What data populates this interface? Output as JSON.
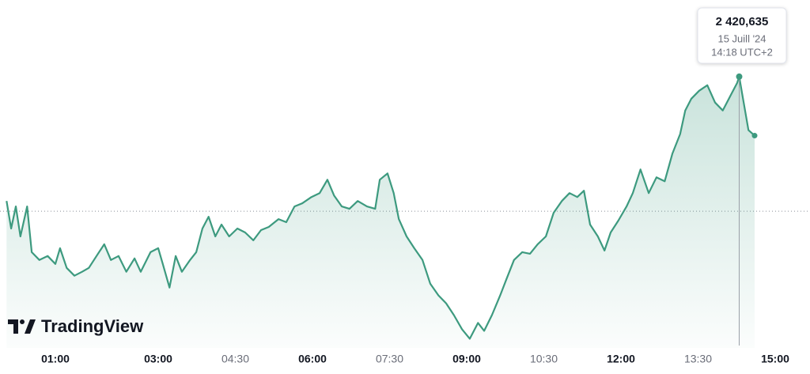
{
  "chart_data": {
    "type": "area",
    "brand": "TradingView",
    "color": "#3d9a7f",
    "x": [
      0.05,
      0.14,
      0.23,
      0.32,
      0.45,
      0.54,
      0.69,
      0.85,
      1.0,
      1.09,
      1.22,
      1.37,
      1.52,
      1.65,
      1.8,
      1.95,
      2.08,
      2.23,
      2.38,
      2.54,
      2.66,
      2.85,
      3.0,
      3.09,
      3.22,
      3.34,
      3.46,
      3.62,
      3.74,
      3.86,
      3.98,
      4.11,
      4.23,
      4.38,
      4.54,
      4.69,
      4.85,
      5.0,
      5.15,
      5.34,
      5.49,
      5.65,
      5.8,
      5.98,
      6.14,
      6.29,
      6.42,
      6.57,
      6.72,
      6.88,
      7.06,
      7.22,
      7.31,
      7.46,
      7.58,
      7.68,
      7.83,
      7.98,
      8.14,
      8.29,
      8.45,
      8.6,
      8.75,
      8.91,
      9.06,
      9.22,
      9.34,
      9.49,
      9.65,
      9.77,
      9.92,
      10.08,
      10.23,
      10.38,
      10.54,
      10.69,
      10.85,
      11.0,
      11.15,
      11.28,
      11.4,
      11.55,
      11.68,
      11.8,
      11.95,
      12.11,
      12.23,
      12.38,
      12.54,
      12.69,
      12.85,
      13.0,
      13.15,
      13.25,
      13.37,
      13.52,
      13.68,
      13.83,
      13.98,
      14.14,
      14.26,
      14.3,
      14.48,
      14.6
    ],
    "values": [
      2412.735,
      2410.985,
      2412.385,
      2410.485,
      2412.385,
      2409.485,
      2408.985,
      2409.235,
      2408.735,
      2409.735,
      2408.485,
      2407.985,
      2408.235,
      2408.485,
      2409.235,
      2409.985,
      2408.985,
      2409.235,
      2408.235,
      2409.085,
      2408.235,
      2409.485,
      2409.735,
      2408.735,
      2407.235,
      2409.235,
      2408.235,
      2408.985,
      2409.485,
      2410.985,
      2411.735,
      2410.485,
      2411.235,
      2410.485,
      2410.985,
      2410.735,
      2410.235,
      2410.885,
      2411.085,
      2411.585,
      2411.385,
      2412.385,
      2412.585,
      2412.985,
      2413.235,
      2414.085,
      2413.085,
      2412.385,
      2412.235,
      2412.735,
      2412.385,
      2412.235,
      2414.085,
      2414.485,
      2413.235,
      2411.585,
      2410.485,
      2409.735,
      2408.985,
      2407.485,
      2406.735,
      2406.235,
      2405.485,
      2404.585,
      2403.985,
      2404.985,
      2404.485,
      2405.485,
      2406.735,
      2407.735,
      2408.985,
      2409.485,
      2409.385,
      2409.985,
      2410.485,
      2411.985,
      2412.735,
      2413.235,
      2412.985,
      2413.385,
      2411.235,
      2410.485,
      2409.585,
      2410.735,
      2411.485,
      2412.385,
      2413.235,
      2414.735,
      2413.235,
      2414.235,
      2413.985,
      2415.735,
      2416.985,
      2418.485,
      2419.235,
      2419.735,
      2420.085,
      2418.985,
      2418.485,
      2419.485,
      2420.235,
      2420.635,
      2417.235,
      2416.885
    ],
    "reference_line": 2412.085,
    "xlim": [
      0,
      15.6
    ],
    "ylim": [
      2403.4,
      2425
    ],
    "xticks": [
      {
        "value": 1,
        "label": "01:00",
        "major": true
      },
      {
        "value": 3,
        "label": "03:00",
        "major": true
      },
      {
        "value": 4.5,
        "label": "04:30",
        "major": false
      },
      {
        "value": 6,
        "label": "06:00",
        "major": true
      },
      {
        "value": 7.5,
        "label": "07:30",
        "major": false
      },
      {
        "value": 9,
        "label": "09:00",
        "major": true
      },
      {
        "value": 10.5,
        "label": "10:30",
        "major": false
      },
      {
        "value": 12,
        "label": "12:00",
        "major": true
      },
      {
        "value": 13.5,
        "label": "13:30",
        "major": false
      },
      {
        "value": 15,
        "label": "15:00",
        "major": true
      }
    ],
    "tooltip": {
      "x": 14.3,
      "value": 2420.635,
      "value_label": "2 420,635",
      "date": "15 Juill '24",
      "time": "14:18 UTC+2"
    }
  }
}
